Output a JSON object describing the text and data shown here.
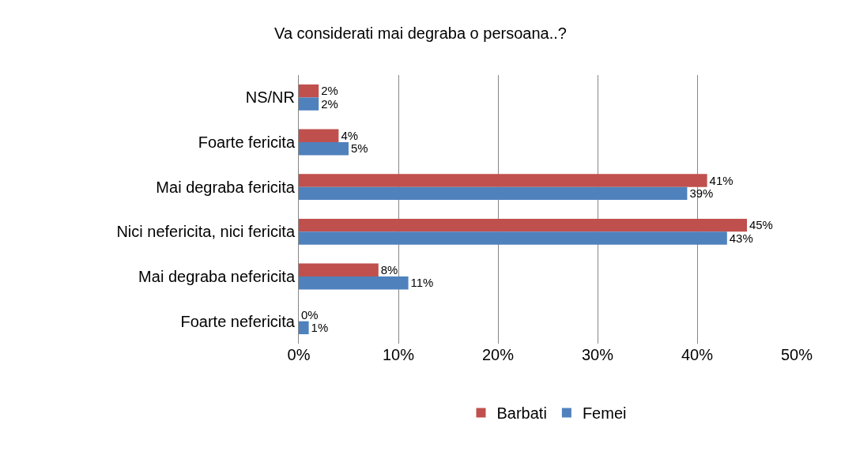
{
  "chart_data": {
    "type": "bar",
    "orientation": "horizontal",
    "title": "Va considerati mai degraba o persoana..?",
    "categories": [
      "NS/NR",
      "Foarte fericita",
      "Mai degraba fericita",
      "Nici nefericita, nici fericita",
      "Mai degraba nefericita",
      "Foarte nefericita"
    ],
    "series": [
      {
        "name": "Barbati",
        "color": "#c0504d",
        "values": [
          2,
          4,
          41,
          45,
          8,
          0
        ],
        "value_labels": [
          "2%",
          "4%",
          "41%",
          "45%",
          "8%",
          "0%"
        ]
      },
      {
        "name": "Femei",
        "color": "#4f81bd",
        "values": [
          2,
          5,
          39,
          43,
          11,
          1
        ],
        "value_labels": [
          "2%",
          "5%",
          "39%",
          "43%",
          "11%",
          "1%"
        ]
      }
    ],
    "xlim": [
      0,
      50
    ],
    "xticks": [
      {
        "value": 0,
        "label": "0%"
      },
      {
        "value": 10,
        "label": "10%"
      },
      {
        "value": 20,
        "label": "20%"
      },
      {
        "value": 30,
        "label": "30%"
      },
      {
        "value": 40,
        "label": "40%"
      },
      {
        "value": 50,
        "label": "50%"
      }
    ],
    "grid": "x",
    "legend": "bottom"
  }
}
